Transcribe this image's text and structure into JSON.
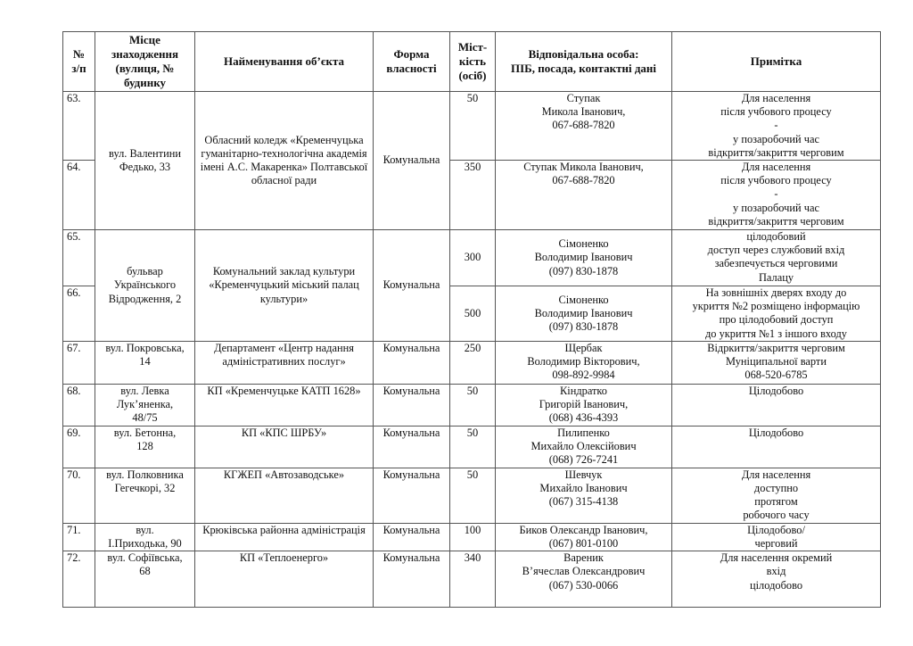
{
  "header": {
    "num": "№\nз/п",
    "location": "Місце знаходження (вулиця, № будинку",
    "name": "Найменування об’єкта",
    "form": "Форма власності",
    "capacity": "Міст-\nкість\n(осіб)",
    "contact": "Відповідальна особа:\nПІБ, посада, контактні дані",
    "note": "Примітка"
  },
  "rows": [
    {
      "num": "63.",
      "location": "вул. Валентини\nФедько, 33",
      "name": "Обласний коледж «Кременчуцька гуманітарно-технологічна академія імені А.С. Макаренка» Полтавської обласної ради",
      "form": "Комунальна",
      "span": 2,
      "capacity": "50",
      "contact": "Ступак\nМикола Іванович,\n067-688-7820",
      "note": "Для населення\nпісля учбового процесу\n-\nу позаробочий час\nвідкриття/закриття черговим"
    },
    {
      "num": "64.",
      "capacity": "350",
      "contact": "Ступак Микола Іванович,\n067-688-7820",
      "note": "Для населення\nпісля учбового процесу\n-\nу позаробочий час\nвідкриття/закриття черговим"
    },
    {
      "num": "65.",
      "location": "бульвар\nУкраїнського\nВідродження, 2",
      "name": "Комунальний заклад культури «Кременчуцький міський палац культури»",
      "form": "Комунальна",
      "span": 2,
      "capacity": "300",
      "contact": "Сімоненко\nВолодимир Іванович\n(097) 830-1878",
      "note": "цілодобовий\nдоступ через службовий вхід\nзабезпечується черговими\nПалацу"
    },
    {
      "num": "66.",
      "capacity": "500",
      "contact": "Сімоненко\nВолодимир Іванович\n(097) 830-1878",
      "note": "На зовнішніх дверях входу до\nукриття №2 розміщено інформацію\nпро цілодобовий доступ\nдо укриття №1 з іншого входу"
    },
    {
      "num": "67.",
      "location": "вул. Покровська,\n14",
      "name": "Департамент «Центр надання адміністративних послуг»",
      "form": "Комунальна",
      "capacity": "250",
      "contact": "Щербак\nВолодимир Вікторович,\n098-892-9984",
      "note": "Відркиття/закриття черговим\nМуніципальної варти\n068-520-6785"
    },
    {
      "num": "68.",
      "location": "вул. Левка\nЛук’яненка,\n48/75",
      "name": "КП «Кременчуцьке КАТП 1628»",
      "form": "Комунальна",
      "capacity": "50",
      "contact": "Кіндратко\nГригорій Іванович,\n(068) 436-4393",
      "note": "Цілодобово"
    },
    {
      "num": "69.",
      "location": "вул. Бетонна,\n128",
      "name": "КП «КПС ШРБУ»",
      "form": "Комунальна",
      "capacity": "50",
      "contact": "Пилипенко\nМихайло Олексійович\n(068) 726-7241",
      "note": "Цілодобово"
    },
    {
      "num": "70.",
      "location": "вул. Полковника\nГегечкорі, 32",
      "name": "КГЖЕП «Автозаводське»",
      "form": "Комунальна",
      "capacity": "50",
      "contact": "Шевчук\nМихайло Іванович\n(067) 315-4138",
      "note": "Для населення\nдоступно\nпротягом\nробочого часу"
    },
    {
      "num": "71.",
      "location": "вул.\nІ.Приходька, 90",
      "name": "Крюківська районна адміністрація",
      "form": "Комунальна",
      "capacity": "100",
      "contact": "Биков Олександр Іванович,\n(067) 801-0100",
      "note": "Цілодобово/\nчерговий"
    },
    {
      "num": "72.",
      "location": "вул. Софіївська,\n68",
      "name": "КП «Теплоенерго»",
      "form": "Комунальна",
      "capacity": "340",
      "contact": "Вареник\nВ’ячеслав Олександрович\n(067) 530-0066",
      "note": "Для населення окремий\nвхід\nцілодобово"
    }
  ]
}
